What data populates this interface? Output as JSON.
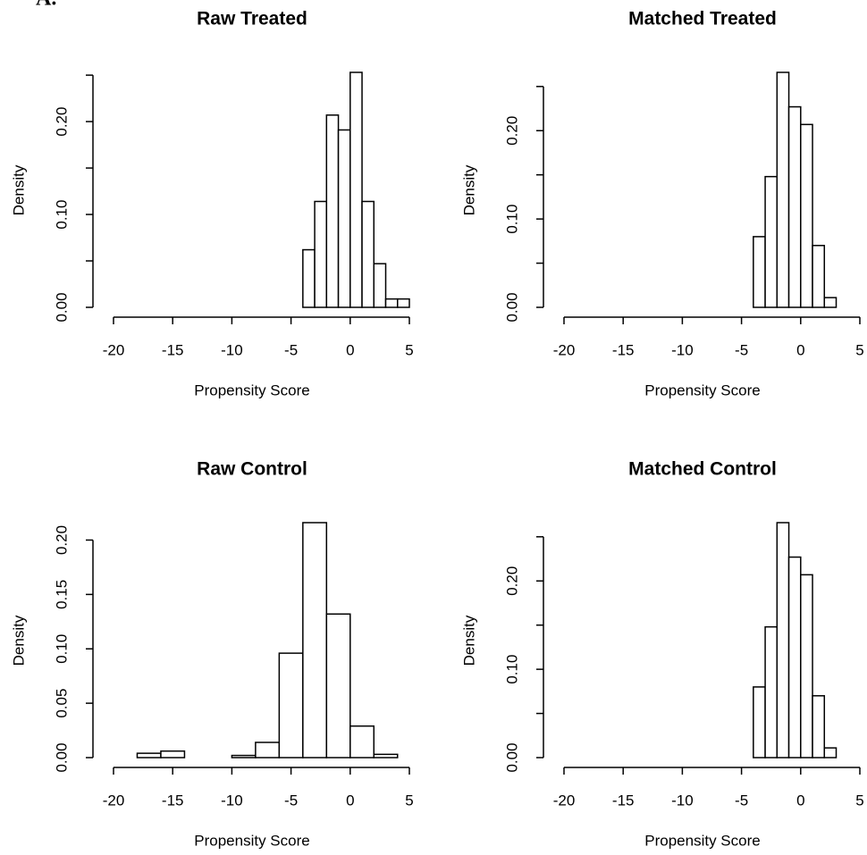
{
  "label": "A.",
  "chart_data": [
    {
      "type": "histogram",
      "title": "Raw Treated",
      "xlabel": "Propensity Score",
      "ylabel": "Density",
      "bins": [
        -4,
        -3,
        -2,
        -1,
        0,
        1,
        2,
        3,
        4,
        5
      ],
      "counts": [
        0.062,
        0.114,
        0.207,
        0.191,
        0.253,
        0.114,
        0.047,
        0.009,
        0.009
      ],
      "color": "#ffffff",
      "edgecolor": "#000000",
      "xlim": [
        -20,
        5
      ],
      "xticks": [
        -20,
        -15,
        -10,
        -5,
        0,
        5
      ],
      "ylim": [
        0,
        0.253
      ],
      "yticks": [
        {
          "value": 0,
          "label": "0.00"
        },
        {
          "value": 0.1,
          "label": "0.10"
        },
        {
          "value": 0.2,
          "label": "0.20"
        }
      ],
      "yminorticks": [
        0.05,
        0.15,
        0.25
      ]
    },
    {
      "type": "histogram",
      "title": "Matched Treated",
      "xlabel": "Propensity Score",
      "ylabel": "Density",
      "bins": [
        -4,
        -3,
        -2,
        -1,
        0,
        1,
        2,
        3
      ],
      "counts": [
        0.08,
        0.148,
        0.266,
        0.227,
        0.207,
        0.07,
        0.011
      ],
      "color": "#ffffff",
      "edgecolor": "#000000",
      "xlim": [
        -20,
        5
      ],
      "xticks": [
        -20,
        -15,
        -10,
        -5,
        0,
        5
      ],
      "ylim": [
        0,
        0.266
      ],
      "yticks": [
        {
          "value": 0,
          "label": "0.00"
        },
        {
          "value": 0.1,
          "label": "0.10"
        },
        {
          "value": 0.2,
          "label": "0.20"
        }
      ],
      "yminorticks": [
        0.05,
        0.15,
        0.25
      ]
    },
    {
      "type": "histogram",
      "title": "Raw Control",
      "xlabel": "Propensity Score",
      "ylabel": "Density",
      "bins": [
        -22,
        -20,
        -18,
        -16,
        -14,
        -12,
        -10,
        -8,
        -6,
        -4,
        -2,
        0,
        2,
        4
      ],
      "counts": [
        0,
        0,
        0.004,
        0.006,
        0,
        0,
        0.002,
        0.014,
        0.096,
        0.216,
        0.132,
        0.029,
        0.003
      ],
      "color": "#ffffff",
      "edgecolor": "#000000",
      "xlim": [
        -20,
        5
      ],
      "xticks": [
        -20,
        -15,
        -10,
        -5,
        0,
        5
      ],
      "ylim": [
        0,
        0.216
      ],
      "yticks": [
        {
          "value": 0,
          "label": "0.00"
        },
        {
          "value": 0.05,
          "label": "0.05"
        },
        {
          "value": 0.1,
          "label": "0.10"
        },
        {
          "value": 0.15,
          "label": "0.15"
        },
        {
          "value": 0.2,
          "label": "0.20"
        }
      ],
      "yminorticks": []
    },
    {
      "type": "histogram",
      "title": "Matched Control",
      "xlabel": "Propensity Score",
      "ylabel": "Density",
      "bins": [
        -4,
        -3,
        -2,
        -1,
        0,
        1,
        2,
        3
      ],
      "counts": [
        0.08,
        0.148,
        0.266,
        0.227,
        0.207,
        0.07,
        0.011
      ],
      "color": "#ffffff",
      "edgecolor": "#000000",
      "xlim": [
        -20,
        5
      ],
      "xticks": [
        -20,
        -15,
        -10,
        -5,
        0,
        5
      ],
      "ylim": [
        0,
        0.266
      ],
      "yticks": [
        {
          "value": 0,
          "label": "0.00"
        },
        {
          "value": 0.1,
          "label": "0.10"
        },
        {
          "value": 0.2,
          "label": "0.20"
        }
      ],
      "yminorticks": [
        0.05,
        0.15,
        0.25
      ]
    }
  ]
}
